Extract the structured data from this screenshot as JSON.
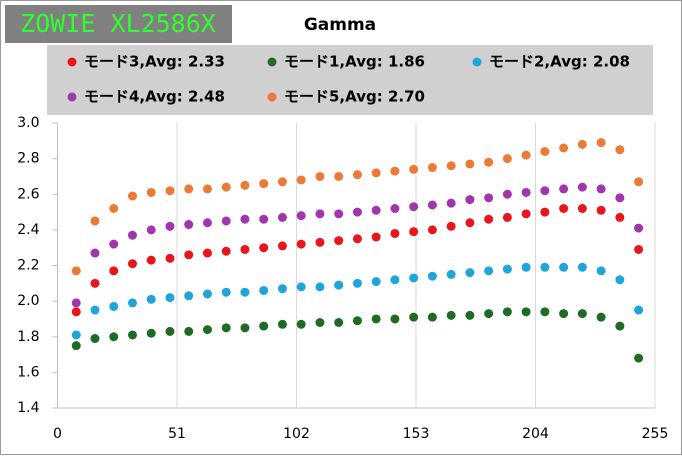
{
  "chart_data": {
    "type": "scatter",
    "badge": "ZOWIE XL2586X",
    "title": "Gamma",
    "x": [
      8,
      16,
      24,
      32,
      40,
      48,
      56,
      64,
      72,
      80,
      88,
      96,
      104,
      112,
      120,
      128,
      136,
      144,
      152,
      160,
      168,
      176,
      184,
      192,
      200,
      208,
      216,
      224,
      232,
      240,
      248
    ],
    "series": [
      {
        "name": "モード3,Avg: 2.33",
        "color": "#e8161b",
        "values": [
          1.94,
          2.1,
          2.17,
          2.21,
          2.23,
          2.24,
          2.26,
          2.27,
          2.28,
          2.29,
          2.3,
          2.31,
          2.32,
          2.33,
          2.34,
          2.35,
          2.36,
          2.38,
          2.39,
          2.4,
          2.42,
          2.44,
          2.46,
          2.47,
          2.49,
          2.5,
          2.52,
          2.52,
          2.51,
          2.47,
          2.29
        ]
      },
      {
        "name": "モード1,Avg: 1.86",
        "color": "#1e6b23",
        "values": [
          1.75,
          1.79,
          1.8,
          1.81,
          1.82,
          1.83,
          1.83,
          1.84,
          1.85,
          1.85,
          1.86,
          1.87,
          1.87,
          1.88,
          1.88,
          1.89,
          1.9,
          1.9,
          1.91,
          1.91,
          1.92,
          1.92,
          1.93,
          1.94,
          1.94,
          1.94,
          1.93,
          1.93,
          1.91,
          1.86,
          1.68
        ]
      },
      {
        "name": "モード2,Avg: 2.08",
        "color": "#1fa4dc",
        "values": [
          1.81,
          1.95,
          1.97,
          1.99,
          2.01,
          2.02,
          2.03,
          2.04,
          2.05,
          2.05,
          2.06,
          2.07,
          2.08,
          2.08,
          2.09,
          2.1,
          2.11,
          2.12,
          2.13,
          2.14,
          2.15,
          2.16,
          2.17,
          2.18,
          2.19,
          2.19,
          2.19,
          2.19,
          2.17,
          2.12,
          1.95
        ]
      },
      {
        "name": "モード4,Avg: 2.48",
        "color": "#a135ad",
        "values": [
          1.99,
          2.27,
          2.32,
          2.37,
          2.4,
          2.42,
          2.43,
          2.44,
          2.45,
          2.46,
          2.46,
          2.47,
          2.48,
          2.49,
          2.49,
          2.5,
          2.51,
          2.52,
          2.53,
          2.54,
          2.55,
          2.57,
          2.58,
          2.6,
          2.61,
          2.62,
          2.63,
          2.64,
          2.63,
          2.58,
          2.41
        ]
      },
      {
        "name": "モード5,Avg: 2.70",
        "color": "#ec7a34",
        "values": [
          2.17,
          2.45,
          2.52,
          2.59,
          2.61,
          2.62,
          2.63,
          2.63,
          2.64,
          2.65,
          2.66,
          2.67,
          2.68,
          2.7,
          2.7,
          2.71,
          2.72,
          2.73,
          2.74,
          2.75,
          2.76,
          2.77,
          2.78,
          2.8,
          2.82,
          2.84,
          2.86,
          2.88,
          2.89,
          2.85,
          2.67
        ]
      }
    ],
    "xlim": [
      0,
      255
    ],
    "xticks": [
      0,
      51,
      102,
      153,
      204,
      255
    ],
    "ylim": [
      1.4,
      3.0
    ],
    "yticks": [
      1.4,
      1.6,
      1.8,
      {
        "value": 2.0,
        "label": "2.0"
      },
      2.2,
      2.4,
      2.6,
      2.8,
      {
        "value": 3.0,
        "label": "3.0"
      }
    ],
    "grid": "x"
  }
}
